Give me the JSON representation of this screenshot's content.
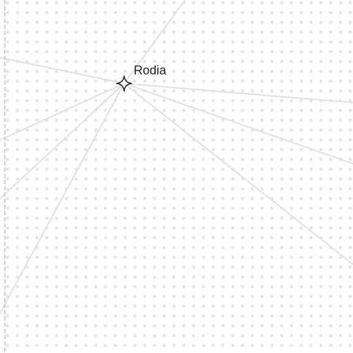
{
  "map": {
    "place": {
      "name": "Rodia",
      "icon": "sparkle-star-icon"
    },
    "colors": {
      "background": "#ffffff",
      "dot": "#e6e6dc",
      "road": "#e0e0e0",
      "border_dash": "#cccccc",
      "marker_stroke": "#222222",
      "label": "#222222"
    }
  }
}
